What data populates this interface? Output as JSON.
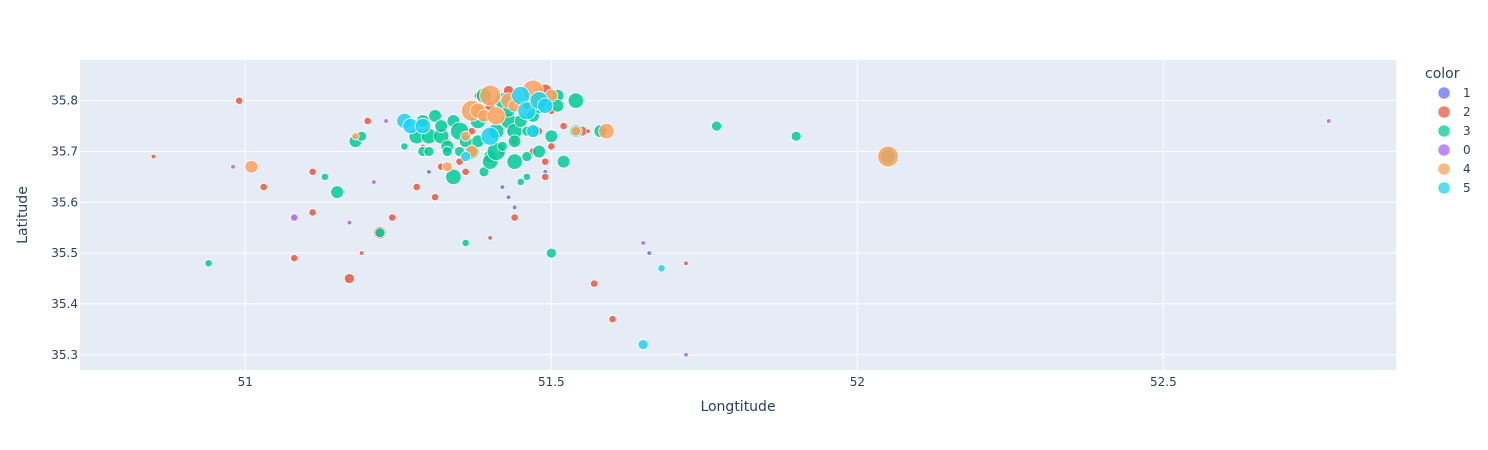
{
  "chart_data": {
    "type": "scatter",
    "xlabel": "Longtitude",
    "ylabel": "Latitude",
    "xlim": [
      50.73,
      52.88
    ],
    "ylim": [
      35.27,
      35.88
    ],
    "x_ticks": [
      51,
      51.5,
      52,
      52.5
    ],
    "x_tick_labels": [
      "51",
      "51.5",
      "52",
      "52.5"
    ],
    "y_ticks": [
      35.3,
      35.4,
      35.5,
      35.6,
      35.7,
      35.8
    ],
    "y_tick_labels": [
      "35.3",
      "35.4",
      "35.5",
      "35.6",
      "35.7",
      "35.8"
    ],
    "grid": true,
    "legend": {
      "title": "color",
      "position": "right"
    },
    "series": [
      {
        "name": "1",
        "color": "#636efa",
        "points": [
          [
            51.3,
            35.66,
            1
          ],
          [
            51.43,
            35.61,
            1
          ],
          [
            51.44,
            35.59,
            1
          ],
          [
            51.49,
            35.66,
            1
          ],
          [
            51.43,
            35.74,
            1
          ],
          [
            51.66,
            35.5,
            1
          ],
          [
            51.36,
            35.73,
            1
          ],
          [
            51.42,
            35.63,
            1
          ]
        ]
      },
      {
        "name": "2",
        "color": "#EF553B",
        "points": [
          [
            50.99,
            35.8,
            2
          ],
          [
            50.85,
            35.69,
            1
          ],
          [
            51.03,
            35.63,
            2
          ],
          [
            51.11,
            35.66,
            2
          ],
          [
            51.11,
            35.58,
            2
          ],
          [
            51.08,
            35.49,
            2
          ],
          [
            51.17,
            35.45,
            3
          ],
          [
            51.22,
            35.54,
            4
          ],
          [
            51.24,
            35.57,
            2
          ],
          [
            51.28,
            35.63,
            2
          ],
          [
            51.31,
            35.61,
            2
          ],
          [
            51.2,
            35.76,
            2
          ],
          [
            51.29,
            35.71,
            1
          ],
          [
            51.32,
            35.67,
            2
          ],
          [
            51.35,
            35.68,
            2
          ],
          [
            51.36,
            35.66,
            2
          ],
          [
            51.38,
            35.81,
            2
          ],
          [
            51.4,
            35.79,
            3
          ],
          [
            51.43,
            35.82,
            3
          ],
          [
            51.44,
            35.57,
            2
          ],
          [
            51.42,
            35.7,
            2
          ],
          [
            51.46,
            35.79,
            2
          ],
          [
            51.48,
            35.74,
            2
          ],
          [
            51.49,
            35.68,
            2
          ],
          [
            51.49,
            35.82,
            4
          ],
          [
            51.5,
            35.78,
            2
          ],
          [
            51.5,
            35.71,
            2
          ],
          [
            51.52,
            35.75,
            2
          ],
          [
            51.55,
            35.74,
            3
          ],
          [
            51.57,
            35.44,
            2
          ],
          [
            51.6,
            35.37,
            2
          ],
          [
            51.72,
            35.48,
            1
          ],
          [
            51.19,
            35.5,
            1
          ],
          [
            51.49,
            35.65,
            2
          ],
          [
            51.4,
            35.53,
            1
          ],
          [
            51.44,
            35.72,
            2
          ],
          [
            51.33,
            35.72,
            2
          ],
          [
            51.37,
            35.74,
            2
          ],
          [
            51.47,
            35.7,
            2
          ],
          [
            51.56,
            35.74,
            1
          ]
        ]
      },
      {
        "name": "3",
        "color": "#00cc96",
        "points": [
          [
            50.94,
            35.48,
            2
          ],
          [
            51.13,
            35.65,
            2
          ],
          [
            51.15,
            35.62,
            4
          ],
          [
            51.18,
            35.72,
            4
          ],
          [
            51.19,
            35.73,
            3
          ],
          [
            51.22,
            35.54,
            3
          ],
          [
            51.26,
            35.71,
            2
          ],
          [
            51.29,
            35.7,
            3
          ],
          [
            51.3,
            35.7,
            3
          ],
          [
            51.28,
            35.73,
            5
          ],
          [
            51.3,
            35.73,
            5
          ],
          [
            51.29,
            35.76,
            4
          ],
          [
            51.31,
            35.77,
            4
          ],
          [
            51.32,
            35.73,
            5
          ],
          [
            51.33,
            35.71,
            4
          ],
          [
            51.34,
            35.76,
            4
          ],
          [
            51.35,
            35.74,
            6
          ],
          [
            51.34,
            35.65,
            5
          ],
          [
            51.36,
            35.52,
            2
          ],
          [
            51.37,
            35.7,
            5
          ],
          [
            51.38,
            35.76,
            5
          ],
          [
            51.38,
            35.72,
            4
          ],
          [
            51.39,
            35.66,
            3
          ],
          [
            51.4,
            35.69,
            4
          ],
          [
            51.4,
            35.68,
            5
          ],
          [
            51.41,
            35.7,
            6
          ],
          [
            51.41,
            35.74,
            5
          ],
          [
            51.42,
            35.8,
            5
          ],
          [
            51.43,
            35.76,
            5
          ],
          [
            51.44,
            35.74,
            5
          ],
          [
            51.44,
            35.72,
            4
          ],
          [
            51.44,
            35.68,
            5
          ],
          [
            51.45,
            35.76,
            4
          ],
          [
            51.45,
            35.64,
            2
          ],
          [
            51.46,
            35.69,
            3
          ],
          [
            51.46,
            35.65,
            2
          ],
          [
            51.47,
            35.77,
            4
          ],
          [
            51.48,
            35.79,
            5
          ],
          [
            51.48,
            35.7,
            4
          ],
          [
            51.49,
            35.8,
            5
          ],
          [
            51.5,
            35.73,
            4
          ],
          [
            51.5,
            35.5,
            3
          ],
          [
            51.51,
            35.81,
            4
          ],
          [
            51.51,
            35.79,
            4
          ],
          [
            51.52,
            35.68,
            4
          ],
          [
            51.54,
            35.74,
            4
          ],
          [
            51.54,
            35.8,
            5
          ],
          [
            51.58,
            35.74,
            4
          ],
          [
            51.77,
            35.75,
            3
          ],
          [
            51.9,
            35.73,
            3
          ],
          [
            52.05,
            35.69,
            5
          ],
          [
            51.32,
            35.75,
            4
          ],
          [
            51.36,
            35.72,
            4
          ],
          [
            51.42,
            35.71,
            3
          ],
          [
            51.39,
            35.81,
            5
          ],
          [
            51.47,
            35.74,
            4
          ],
          [
            51.33,
            35.7,
            3
          ],
          [
            51.35,
            35.7,
            3
          ],
          [
            51.43,
            35.78,
            4
          ],
          [
            51.46,
            35.74,
            3
          ]
        ]
      },
      {
        "name": "0",
        "color": "#ab63fa",
        "points": [
          [
            51.08,
            35.57,
            2
          ],
          [
            51.17,
            35.56,
            1
          ],
          [
            51.21,
            35.64,
            1
          ],
          [
            51.23,
            35.76,
            1
          ],
          [
            50.98,
            35.67,
            1
          ],
          [
            51.65,
            35.52,
            1
          ],
          [
            51.72,
            35.3,
            1
          ],
          [
            52.77,
            35.76,
            1
          ]
        ]
      },
      {
        "name": "4",
        "color": "#FFA15A",
        "points": [
          [
            51.01,
            35.67,
            4
          ],
          [
            51.18,
            35.73,
            2
          ],
          [
            51.33,
            35.67,
            3
          ],
          [
            51.37,
            35.7,
            4
          ],
          [
            51.37,
            35.78,
            7
          ],
          [
            51.4,
            35.81,
            7
          ],
          [
            51.43,
            35.8,
            5
          ],
          [
            51.38,
            35.78,
            5
          ],
          [
            51.39,
            35.77,
            4
          ],
          [
            51.47,
            35.82,
            7
          ],
          [
            51.48,
            35.8,
            6
          ],
          [
            51.59,
            35.74,
            5
          ],
          [
            52.05,
            35.69,
            7
          ],
          [
            51.41,
            35.77,
            6
          ],
          [
            51.44,
            35.79,
            4
          ],
          [
            51.5,
            35.81,
            4
          ],
          [
            51.36,
            35.73,
            3
          ],
          [
            51.54,
            35.74,
            3
          ]
        ]
      },
      {
        "name": "5",
        "color": "#19d3f3",
        "points": [
          [
            51.26,
            35.76,
            5
          ],
          [
            51.27,
            35.75,
            5
          ],
          [
            51.29,
            35.75,
            5
          ],
          [
            51.36,
            35.69,
            3
          ],
          [
            51.4,
            35.73,
            6
          ],
          [
            51.45,
            35.81,
            6
          ],
          [
            51.46,
            35.78,
            6
          ],
          [
            51.48,
            35.8,
            6
          ],
          [
            51.49,
            35.79,
            5
          ],
          [
            51.65,
            35.32,
            3
          ],
          [
            51.68,
            35.47,
            2
          ],
          [
            51.47,
            35.74,
            4
          ]
        ]
      }
    ]
  }
}
